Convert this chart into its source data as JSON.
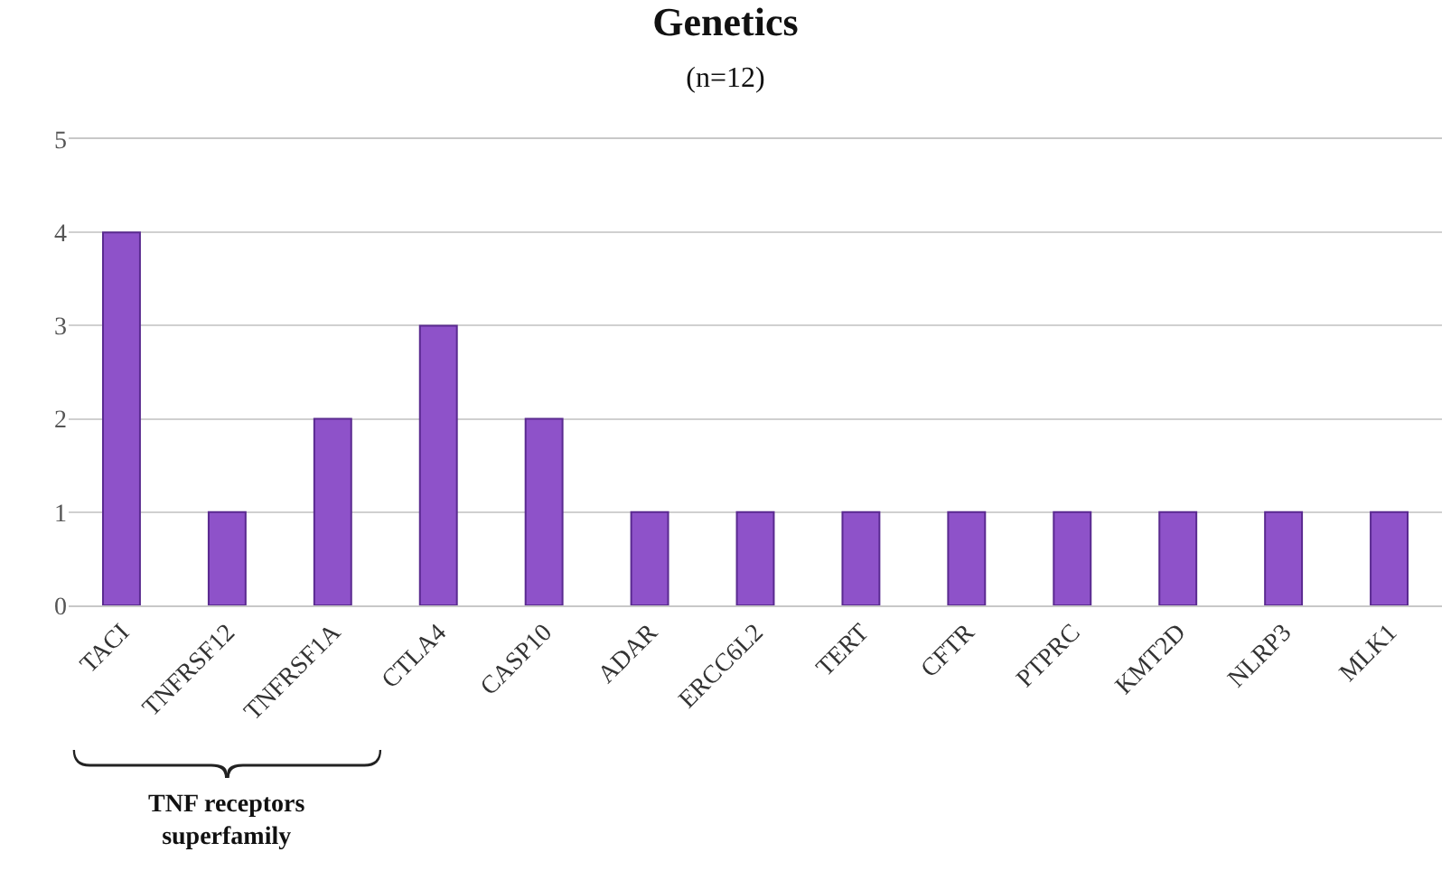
{
  "chart_data": {
    "type": "bar",
    "title": "Genetics",
    "subtitle": "(n=12)",
    "categories": [
      "TACI",
      "TNFRSF12",
      "TNFRSF1A",
      "CTLA4",
      "CASP10",
      "ADAR",
      "ERCC6L2",
      "TERT",
      "CFTR",
      "PTPRC",
      "KMT2D",
      "NLRP3",
      "MLK1"
    ],
    "values": [
      4,
      1,
      2,
      3,
      2,
      1,
      1,
      1,
      1,
      1,
      1,
      1,
      1
    ],
    "color": "#8e52c9",
    "ylim": [
      0,
      5
    ],
    "yticks": [
      0,
      1,
      2,
      3,
      4,
      5
    ],
    "grid": "y",
    "annotations": [
      "TNF receptors\nsuperfamily"
    ]
  }
}
